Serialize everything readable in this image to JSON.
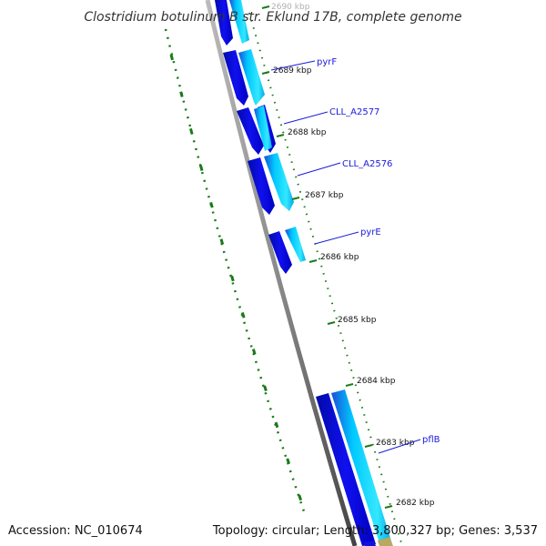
{
  "title": "Clostridium botulinum B str. Eklund 17B, complete genome",
  "accession": "Accession: NC_010674",
  "summary": "Topology: circular; Length: 3,800,327 bp; Genes: 3,537",
  "kbp_labels": [
    "2690 kbp",
    "2689 kbp",
    "2688 kbp",
    "2687 kbp",
    "2686 kbp",
    "2685 kbp",
    "2684 kbp",
    "2683 kbp",
    "2682 kbp"
  ],
  "gene_labels": [
    "pyrF",
    "CLL_A2577",
    "CLL_A2576",
    "pyrE",
    "pflB"
  ],
  "colors": {
    "backbone": "#808080",
    "gc_ticks": "#1a7a1a",
    "cds_forward": "#1010e0",
    "cds_reverse": "#00bfff",
    "label_lines": "#1a1adc"
  }
}
